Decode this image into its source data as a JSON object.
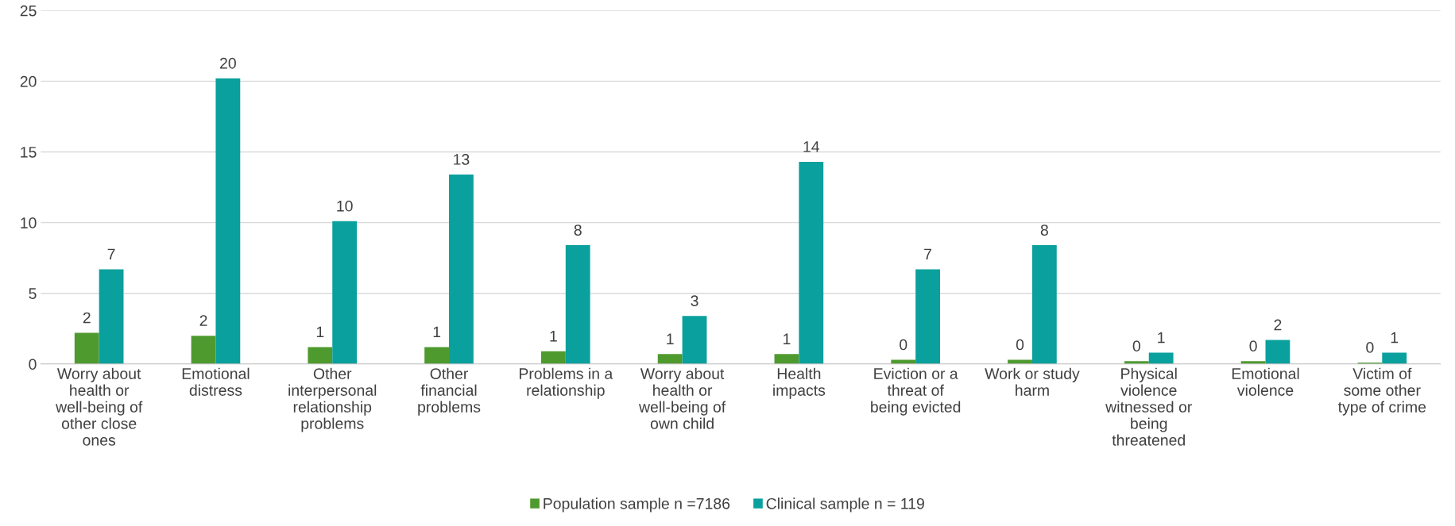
{
  "chart_data": {
    "type": "bar",
    "categories": [
      "Worry about health or well-being of other close ones",
      "Emotional distress",
      "Other interpersonal relationship problems",
      "Other financial problems",
      "Problems in a relationship",
      "Worry about health or well-being of own child",
      "Health impacts",
      "Eviction or a threat of being evicted",
      "Work or study harm",
      "Physical violence witnessed or being threatened",
      "Emotional violence",
      "Victim of some other type of crime"
    ],
    "series": [
      {
        "name": "Population sample n =7186",
        "color": "#4e9a2f",
        "values": [
          2.2,
          2.0,
          1.2,
          1.2,
          0.9,
          0.7,
          0.7,
          0.3,
          0.3,
          0.2,
          0.2,
          0.1
        ],
        "value_labels": [
          "2",
          "2",
          "1",
          "1",
          "1",
          "1",
          "1",
          "0",
          "0",
          "0",
          "0",
          "0"
        ]
      },
      {
        "name": "Clinical sample n = 119",
        "color": "#0aa09d",
        "values": [
          6.7,
          20.2,
          10.1,
          13.4,
          8.4,
          3.4,
          14.3,
          6.7,
          8.4,
          0.8,
          1.7,
          0.8
        ],
        "value_labels": [
          "7",
          "20",
          "10",
          "13",
          "8",
          "3",
          "14",
          "7",
          "8",
          "1",
          "2",
          "1"
        ]
      }
    ],
    "ylim": [
      0,
      25
    ],
    "yticks": [
      0,
      5,
      10,
      15,
      20,
      25
    ],
    "grid": "y",
    "legend": "bottom"
  }
}
